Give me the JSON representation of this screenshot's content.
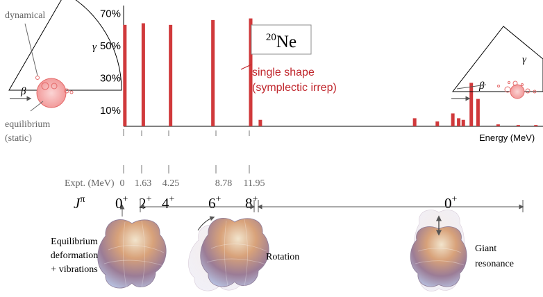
{
  "chart_data": {
    "type": "bar",
    "y_ticks": [
      "10%",
      "30%",
      "50%",
      "70%"
    ],
    "ylim": [
      0,
      75
    ],
    "xlim": [
      0,
      100
    ],
    "xlabel": "Energy (MeV)",
    "bar_color": "#d0393b",
    "bars": [
      {
        "x": 0.3,
        "value": 63
      },
      {
        "x": 4.7,
        "value": 64
      },
      {
        "x": 11.2,
        "value": 63
      },
      {
        "x": 21.3,
        "value": 66
      },
      {
        "x": 30.3,
        "value": 67
      },
      {
        "x": 32.6,
        "value": 4
      },
      {
        "x": 69.4,
        "value": 5
      },
      {
        "x": 74.8,
        "value": 3
      },
      {
        "x": 78.5,
        "value": 8
      },
      {
        "x": 79.9,
        "value": 5
      },
      {
        "x": 81.0,
        "value": 4
      },
      {
        "x": 82.9,
        "value": 27
      },
      {
        "x": 84.5,
        "value": 17
      },
      {
        "x": 89.3,
        "value": 1.2
      },
      {
        "x": 94.1,
        "value": 0.8
      },
      {
        "x": 98.3,
        "value": 0.8
      }
    ]
  },
  "nucleus_label": {
    "mass": "20",
    "symbol": "Ne"
  },
  "single_shape_label": [
    "single shape",
    "(symplectic irrep)"
  ],
  "left_inset": {
    "dynamical_label": "dynamical",
    "equilibrium_label": "equilibrium",
    "static_label": "(static)",
    "beta": "β",
    "gamma": "γ"
  },
  "right_inset": {
    "beta": "β",
    "gamma": "γ"
  },
  "expt": {
    "label": "Expt. (MeV)",
    "values": [
      "0",
      "1.63",
      "4.25",
      "8.78",
      "11.95"
    ]
  },
  "jpi": {
    "label_J": "J",
    "label_pi": "π",
    "states": [
      "0",
      "2",
      "4",
      "6",
      "8",
      "0"
    ],
    "parity": "+"
  },
  "annotations": {
    "equilibrium": [
      "Equilibrium",
      "deformation",
      "+ vibrations"
    ],
    "rotation": "Rotation",
    "giant": [
      "Giant",
      "resonance"
    ]
  },
  "colors": {
    "accent_red": "#c0262c",
    "gray": "#666666"
  }
}
